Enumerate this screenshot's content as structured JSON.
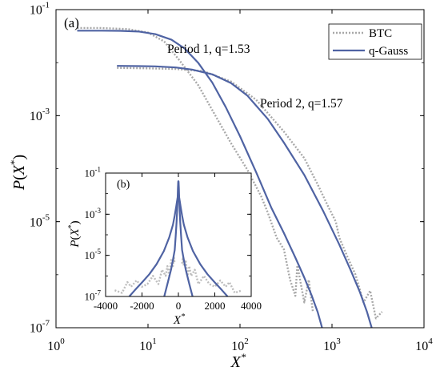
{
  "chart_data": [
    {
      "panel": "(a)",
      "type": "line",
      "xscale": "log",
      "yscale": "log",
      "xlim": [
        1,
        10000
      ],
      "ylim": [
        1e-07,
        0.1
      ],
      "xlabel": "X*",
      "ylabel": "P(X*)",
      "x_ticks": [
        "10⁰",
        "10¹",
        "10²",
        "10³",
        "10⁴"
      ],
      "y_ticks": [
        "10⁻⁷",
        "10⁻⁵",
        "10⁻³",
        "10⁻¹"
      ],
      "legend": {
        "placement": "top-right",
        "entries": [
          "BTC",
          "q-Gauss"
        ]
      },
      "annotations": [
        "Period 1, q=1.53",
        "Period 2, q=1.57"
      ],
      "series": [
        {
          "name": "BTC",
          "legend_ref": 0,
          "style": "dotted",
          "color": "#a8a8a8",
          "groups": [
            {
              "x": [
                1.7,
                3,
                6,
                10,
                15,
                22,
                35,
                55,
                80,
                120,
                170,
                200,
                250,
                300,
                350,
                400,
                420,
                500,
                560,
                620
              ],
              "y": [
                0.0451,
                0.045,
                0.043,
                0.037,
                0.025,
                0.011,
                0.00379,
                0.00095,
                0.0003,
                9.6e-05,
                3e-05,
                1.5e-05,
                5e-06,
                3e-06,
                8e-07,
                4e-07,
                1.5e-06,
                3e-07,
                8e-07,
                2e-07
              ]
            },
            {
              "x": [
                4.6,
                10,
                20,
                40,
                80,
                150,
                300,
                500,
                700,
                900,
                1100,
                1200,
                1500,
                1800,
                2200,
                2600,
                3000,
                3500
              ],
              "y": [
                0.00797,
                0.0078,
                0.0076,
                0.0069,
                0.0044,
                0.00199,
                0.0005,
                0.000158,
                5e-05,
                2e-05,
                1e-05,
                5e-06,
                2e-06,
                1e-06,
                3e-07,
                5e-07,
                1.5e-07,
                2e-07
              ]
            }
          ]
        },
        {
          "name": "q-Gauss",
          "legend_ref": 1,
          "style": "solid",
          "color": "#4f63a3",
          "groups": [
            {
              "x": [
                1.7,
                3,
                5,
                8,
                12,
                18,
                25,
                35,
                50,
                70,
                100,
                150,
                220,
                300,
                400,
                500,
                600,
                700,
                780
              ],
              "y": [
                0.04,
                0.04,
                0.0398,
                0.0385,
                0.0345,
                0.027,
                0.0185,
                0.01,
                0.0042,
                0.00145,
                0.00041,
                8.5e-05,
                1.8e-05,
                6.1e-06,
                2.1e-06,
                8.8e-07,
                4.1e-07,
                1.95e-07,
                1e-07
              ]
            },
            {
              "x": [
                4.6,
                8,
                12,
                20,
                30,
                50,
                80,
                120,
                200,
                300,
                500,
                800,
                1200,
                1600,
                2000,
                2400,
                2700
              ],
              "y": [
                0.0087,
                0.0086,
                0.0085,
                0.0081,
                0.0074,
                0.006,
                0.0041,
                0.0024,
                0.00087,
                0.00031,
                7.6e-05,
                1.6e-05,
                3.7e-06,
                1.2e-06,
                4.8e-07,
                2e-07,
                1e-07
              ]
            }
          ]
        }
      ]
    },
    {
      "panel": "(b)",
      "type": "line",
      "yscale": "log",
      "xlim": [
        -4000,
        4000
      ],
      "ylim": [
        1e-07,
        0.1
      ],
      "xlabel": "X*",
      "ylabel": "P(X*)",
      "x_ticks": [
        "-4000",
        "-2000",
        "0",
        "2000",
        "4000"
      ],
      "y_ticks": [
        "10⁻⁷",
        "10⁻⁵",
        "10⁻³",
        "10⁻¹"
      ],
      "series": [
        {
          "name": "BTC",
          "legend_ref": 0,
          "style": "dotted",
          "color": "#bdbdbd",
          "groups": [
            {
              "x": [
                -3500,
                -3100,
                -2800,
                -2600,
                -2300,
                -2000,
                -1700,
                -1400,
                -1100,
                -900,
                -700,
                -600,
                -500,
                -400,
                -300,
                -250,
                -200
              ],
              "y": [
                2e-07,
                1.5e-07,
                5e-07,
                3e-07,
                6e-07,
                3e-07,
                4e-07,
                1e-06,
                4e-07,
                2e-06,
                1e-06,
                3e-06,
                1e-06,
                6e-06,
                3e-06,
                8e-06,
                4e-06
              ]
            },
            {
              "x": [
                200,
                250,
                300,
                400,
                500,
                600,
                700,
                900,
                1100,
                1400,
                1700,
                2000,
                2300,
                2600,
                2800,
                3100,
                3500
              ],
              "y": [
                4e-06,
                8e-06,
                3e-06,
                6e-06,
                1e-06,
                3e-06,
                1e-06,
                2e-06,
                4e-07,
                1e-06,
                4e-07,
                3e-07,
                6e-07,
                3e-07,
                5e-07,
                1.5e-07,
                2e-07
              ]
            }
          ]
        },
        {
          "name": "q-Gauss",
          "legend_ref": 1,
          "style": "solid",
          "color": "#4f63a3",
          "groups": [
            {
              "x": [
                -780,
                -600,
                -400,
                -300,
                -200,
                -150,
                -100,
                -70,
                -50,
                -35,
                -25,
                -18,
                -12,
                -8,
                -5,
                -3,
                -1.7,
                0,
                1.7,
                3,
                5,
                8,
                12,
                18,
                25,
                35,
                50,
                70,
                100,
                150,
                200,
                300,
                400,
                600,
                780
              ],
              "y": [
                1e-07,
                4.1e-07,
                2.1e-06,
                6.1e-06,
                1.8e-05,
                8.5e-05,
                0.00041,
                0.00145,
                0.0042,
                0.01,
                0.0185,
                0.027,
                0.0345,
                0.0385,
                0.0398,
                0.04,
                0.04,
                0.04,
                0.04,
                0.04,
                0.0398,
                0.0385,
                0.0345,
                0.027,
                0.0185,
                0.01,
                0.0042,
                0.00145,
                0.00041,
                8.5e-05,
                1.8e-05,
                6.1e-06,
                2.1e-06,
                4.1e-07,
                1e-07
              ]
            },
            {
              "x": [
                -2700,
                -2400,
                -2000,
                -1600,
                -1200,
                -800,
                -500,
                -300,
                -200,
                -120,
                -80,
                -50,
                -30,
                -20,
                -12,
                -8,
                -4.6,
                0,
                4.6,
                8,
                12,
                20,
                30,
                50,
                80,
                120,
                200,
                300,
                500,
                800,
                1200,
                1600,
                2000,
                2400,
                2700
              ],
              "y": [
                1e-07,
                2e-07,
                4.8e-07,
                1.2e-06,
                3.7e-06,
                1.6e-05,
                7.6e-05,
                0.00031,
                0.00087,
                0.0024,
                0.0041,
                0.006,
                0.0074,
                0.0081,
                0.0085,
                0.0086,
                0.0087,
                0.0087,
                0.0087,
                0.0086,
                0.0085,
                0.0081,
                0.0074,
                0.006,
                0.0041,
                0.0024,
                0.00087,
                0.00031,
                7.6e-05,
                1.6e-05,
                3.7e-06,
                1.2e-06,
                4.8e-07,
                2e-07,
                1e-07
              ]
            }
          ]
        }
      ]
    }
  ]
}
